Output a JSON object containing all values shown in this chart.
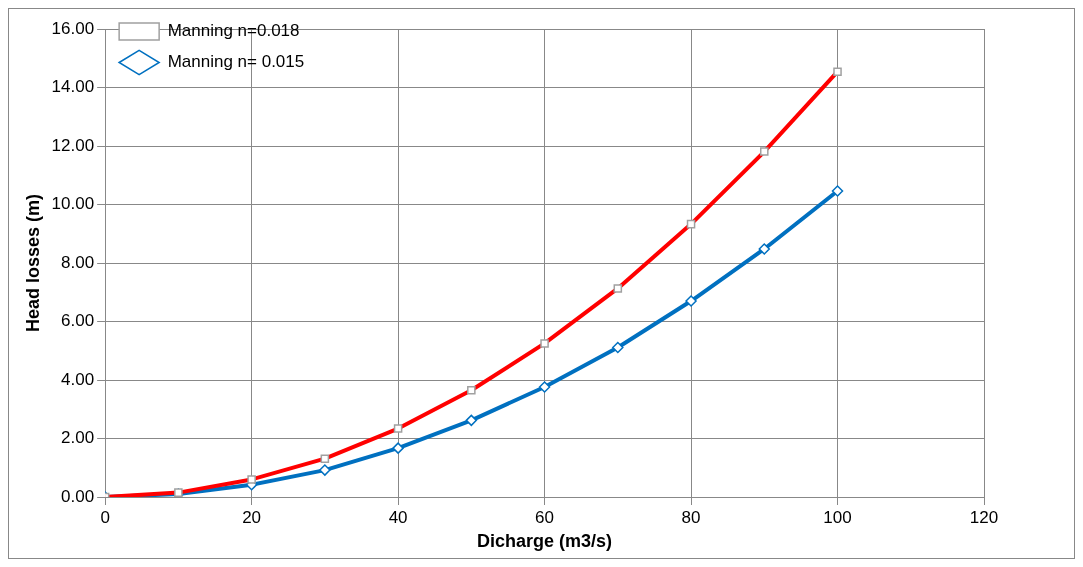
{
  "chart_data": {
    "type": "line",
    "xlabel": "Dicharge (m3/s)",
    "ylabel": "Head losses (m)",
    "x": [
      0,
      10,
      20,
      30,
      40,
      50,
      60,
      70,
      80,
      90,
      100
    ],
    "xlim": [
      0,
      120
    ],
    "xticks": [
      0,
      20,
      40,
      60,
      80,
      100,
      120
    ],
    "ylim": [
      0,
      16
    ],
    "yticks": [
      {
        "value": 0,
        "label": "0.00"
      },
      {
        "value": 2,
        "label": "2.00"
      },
      {
        "value": 4,
        "label": "4.00"
      },
      {
        "value": 6,
        "label": "6.00"
      },
      {
        "value": 8,
        "label": "8.00"
      },
      {
        "value": 10,
        "label": "10.00"
      },
      {
        "value": 12,
        "label": "12.00"
      },
      {
        "value": 14,
        "label": "14.00"
      },
      {
        "value": 16,
        "label": "16.00"
      }
    ],
    "grid": true,
    "legend": "top left",
    "line_style": "solid",
    "series": [
      {
        "name": "Manning n= 0.015",
        "color": "#0070c0",
        "marker": "diamond",
        "values": [
          0,
          0.1,
          0.42,
          0.92,
          1.67,
          2.62,
          3.76,
          5.11,
          6.7,
          8.48,
          10.46
        ]
      },
      {
        "name": "Manning n=0.018",
        "color": "#ff0000",
        "marker": "square",
        "values": [
          0,
          0.15,
          0.6,
          1.31,
          2.34,
          3.65,
          5.25,
          7.13,
          9.33,
          11.81,
          14.54
        ]
      }
    ]
  }
}
